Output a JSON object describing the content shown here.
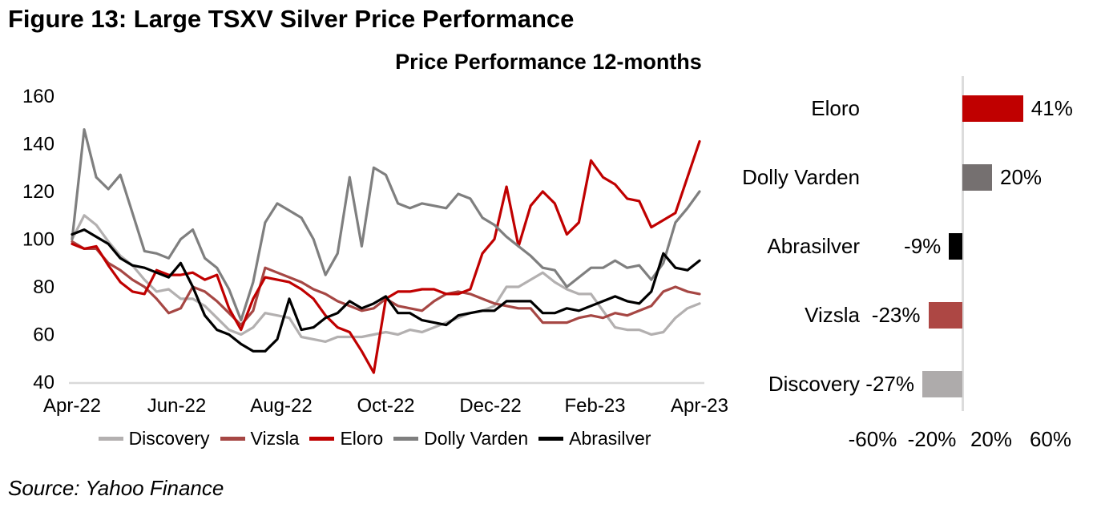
{
  "figure": {
    "title": "Figure 13: Large TSXV Silver Price Performance",
    "source": "Source: Yahoo Finance"
  },
  "chart_data": [
    {
      "type": "line",
      "title": "Price Performance 12-months",
      "x_ticks": [
        "Apr-22",
        "Jun-22",
        "Aug-22",
        "Oct-22",
        "Dec-22",
        "Feb-23",
        "Apr-23"
      ],
      "y_ticks": [
        40,
        60,
        80,
        100,
        120,
        140,
        160
      ],
      "ylim": [
        40,
        160
      ],
      "x_unit": "weekly samples, Apr-2022 through Apr-2023",
      "grid": false,
      "legend_position": "bottom",
      "axis_color": "#d9d9d9",
      "series": [
        {
          "name": "Discovery",
          "color": "#b3b0b0",
          "values": [
            100,
            110,
            106,
            99,
            93,
            89,
            83,
            78,
            79,
            75,
            75,
            72,
            67,
            62,
            60,
            63,
            69,
            68,
            67,
            59,
            58,
            57,
            59,
            59,
            59,
            60,
            61,
            60,
            62,
            61,
            63,
            65,
            67,
            69,
            70,
            72,
            80,
            80,
            83,
            86,
            82,
            79,
            77,
            77,
            70,
            63,
            62,
            62,
            60,
            61,
            67,
            71,
            73
          ]
        },
        {
          "name": "Vizsla",
          "color": "#a64744",
          "values": [
            99,
            96,
            96,
            90,
            87,
            83,
            80,
            75,
            69,
            71,
            80,
            78,
            74,
            69,
            64,
            70,
            88,
            86,
            84,
            82,
            79,
            77,
            74,
            72,
            70,
            71,
            75,
            72,
            71,
            70,
            74,
            77,
            78,
            77,
            75,
            73,
            72,
            71,
            71,
            65,
            65,
            65,
            67,
            68,
            67,
            69,
            68,
            70,
            72,
            78,
            80,
            78,
            77
          ]
        },
        {
          "name": "Eloro",
          "color": "#c00000",
          "values": [
            98,
            96,
            97,
            89,
            82,
            78,
            77,
            87,
            85,
            85,
            86,
            83,
            85,
            71,
            62,
            75,
            84,
            83,
            82,
            79,
            75,
            68,
            63,
            61,
            53,
            44,
            75,
            78,
            78,
            79,
            79,
            77,
            77,
            79,
            94,
            100,
            122,
            97,
            114,
            120,
            115,
            102,
            107,
            133,
            126,
            123,
            117,
            116,
            105,
            108,
            111,
            126,
            141
          ]
        },
        {
          "name": "Dolly Varden",
          "color": "#7f7f7f",
          "values": [
            100,
            146,
            126,
            121,
            127,
            111,
            95,
            94,
            92,
            100,
            104,
            92,
            88,
            79,
            66,
            82,
            107,
            115,
            112,
            109,
            100,
            85,
            94,
            126,
            97,
            130,
            127,
            115,
            113,
            115,
            114,
            113,
            119,
            117,
            109,
            106,
            101,
            97,
            93,
            88,
            87,
            80,
            84,
            88,
            88,
            91,
            88,
            89,
            83,
            90,
            107,
            113,
            120
          ]
        },
        {
          "name": "Abrasilver",
          "color": "#000000",
          "values": [
            102,
            104,
            101,
            98,
            92,
            89,
            88,
            86,
            84,
            90,
            80,
            68,
            62,
            60,
            56,
            53,
            53,
            58,
            75,
            62,
            63,
            67,
            69,
            74,
            71,
            73,
            76,
            69,
            69,
            66,
            65,
            64,
            68,
            69,
            70,
            70,
            74,
            74,
            74,
            69,
            69,
            71,
            70,
            72,
            74,
            76,
            74,
            73,
            78,
            94,
            88,
            87,
            91
          ]
        }
      ]
    },
    {
      "type": "bar",
      "orientation": "horizontal",
      "categories": [
        "Eloro",
        "Dolly Varden",
        "Abrasilver",
        "Vizsla",
        "Discovery"
      ],
      "values": [
        41,
        20,
        -9,
        -23,
        -27
      ],
      "value_labels": [
        "41%",
        "20%",
        "-9%",
        "-23%",
        "-27%"
      ],
      "colors": [
        "#c00000",
        "#757070",
        "#000000",
        "#ad4744",
        "#aeabab"
      ],
      "x_ticks": [
        "-60%",
        "-20%",
        "20%",
        "60%"
      ],
      "x_tick_values": [
        -60,
        -20,
        20,
        60
      ],
      "xlim": [
        -80,
        80
      ],
      "axis_color": "#dcdcdc",
      "grid": false
    }
  ]
}
